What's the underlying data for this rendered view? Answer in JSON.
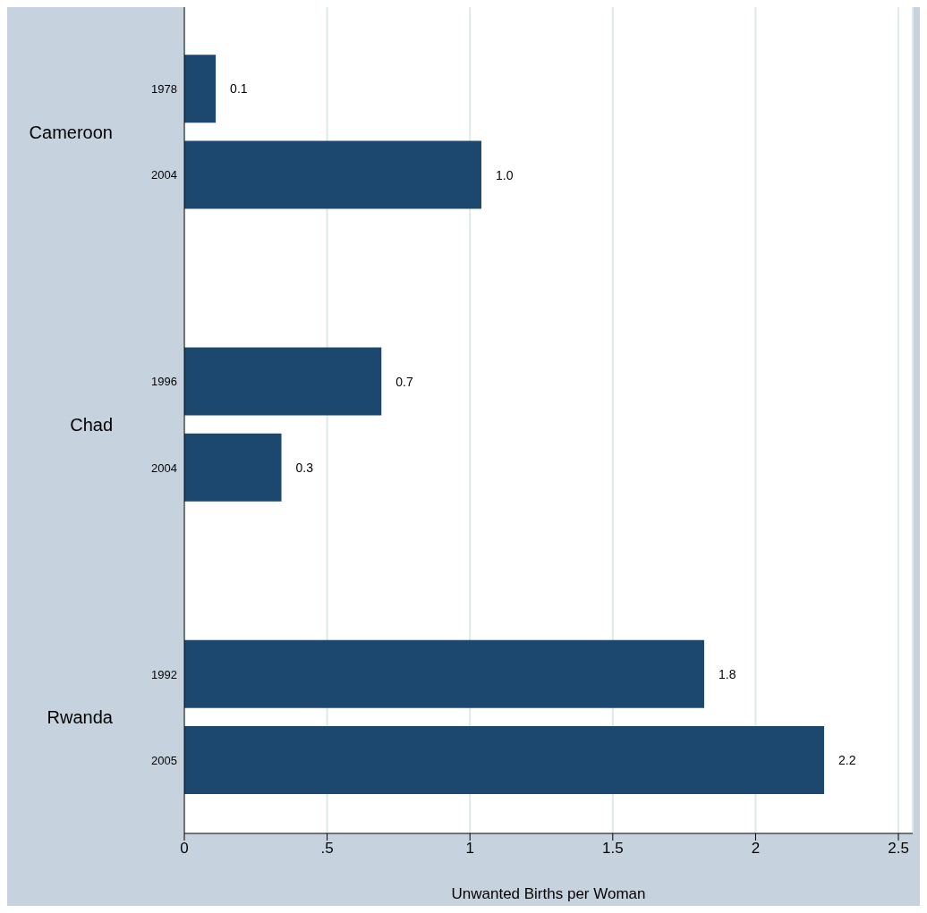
{
  "chart_data": {
    "type": "bar",
    "orientation": "horizontal",
    "xlabel": "Unwanted Births per Woman",
    "categories": [
      "1978",
      "2004",
      null,
      "1996",
      "2004",
      null,
      "1992",
      "2005"
    ],
    "values": [
      0.11,
      1.04,
      null,
      0.69,
      0.34,
      null,
      1.82,
      2.24
    ],
    "value_labels": [
      "0.1",
      "1.0",
      null,
      "0.7",
      "0.3",
      null,
      "1.8",
      "2.2"
    ],
    "annotations": [
      "Cameroon",
      "Chad",
      "Rwanda"
    ],
    "color": "#1c4870",
    "xlim": [
      0,
      2.55
    ],
    "xticks": [
      0,
      {
        "value": 0.5,
        "label": ".5"
      },
      1,
      1.5,
      2,
      2.5
    ],
    "grid": "x"
  }
}
